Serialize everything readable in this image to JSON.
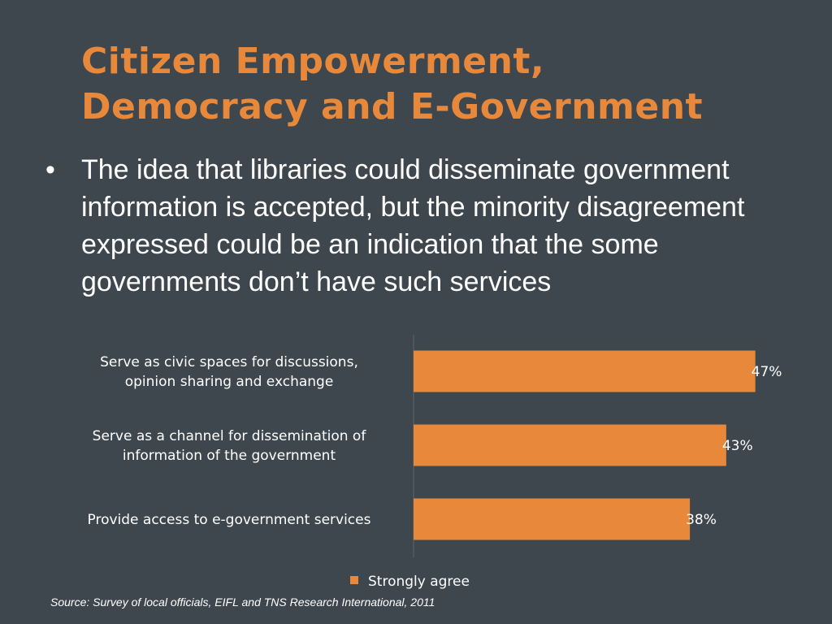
{
  "slide": {
    "title_line1": "Citizen Empowerment,",
    "title_line2": "Democracy and E-Government",
    "bullet": "The idea that libraries could disseminate government information is accepted, but the minority disagreement expressed could be an indication that the some governments don’t have such services",
    "source": "Source: Survey of local officials, EIFL and TNS Research International, 2011"
  },
  "colors": {
    "background": "#3e474e",
    "title": "#e8883a",
    "bar": "#e8883a",
    "text": "#ffffff"
  },
  "chart_data": {
    "type": "bar",
    "orientation": "horizontal",
    "categories": [
      [
        "Serve as civic spaces for discussions,",
        "opinion sharing and exchange"
      ],
      [
        "Serve as a channel for dissemination of",
        "information of the government"
      ],
      [
        "Provide access to e-government services"
      ]
    ],
    "series": [
      {
        "name": "Strongly agree",
        "values": [
          47,
          43,
          38
        ]
      }
    ],
    "value_labels": [
      "47%",
      "43%",
      "38%"
    ],
    "xlim": [
      0,
      100
    ],
    "legend": "bottom",
    "grid": false
  }
}
